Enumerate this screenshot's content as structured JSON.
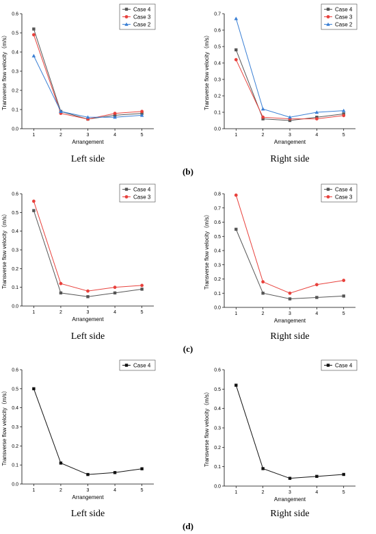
{
  "colors": {
    "Case 4": "#555555",
    "Case 3": "#e8413c",
    "Case 2": "#3a7fd4",
    "case4_black": "#111111"
  },
  "panel_labels": [
    "(b)",
    "(c)",
    "(d)"
  ],
  "chart_data": [
    {
      "type": "line",
      "caption": "Left side",
      "xlabel": "Arrangement",
      "ylabel": "Transverse flow velocity（m/s）",
      "x": [
        1,
        2,
        3,
        4,
        5
      ],
      "ylim": [
        0,
        0.6
      ],
      "yticks": [
        "0.0",
        "0.1",
        "0.2",
        "0.3",
        "0.4",
        "0.5",
        "0.6"
      ],
      "legend": "top-right",
      "series": [
        {
          "name": "Case 4",
          "marker": "square",
          "values": [
            0.52,
            0.09,
            0.05,
            0.07,
            0.08
          ]
        },
        {
          "name": "Case 3",
          "marker": "circle",
          "values": [
            0.49,
            0.08,
            0.05,
            0.08,
            0.09
          ]
        },
        {
          "name": "Case 2",
          "marker": "triangle",
          "values": [
            0.38,
            0.09,
            0.06,
            0.06,
            0.07
          ]
        }
      ]
    },
    {
      "type": "line",
      "caption": "Right side",
      "xlabel": "Arrangement",
      "ylabel": "Transverse flow velocity（m/s）",
      "x": [
        1,
        2,
        3,
        4,
        5
      ],
      "ylim": [
        0,
        0.7
      ],
      "yticks": [
        "0.0",
        "0.1",
        "0.2",
        "0.3",
        "0.4",
        "0.5",
        "0.6",
        "0.7"
      ],
      "legend": "top-right",
      "series": [
        {
          "name": "Case 4",
          "marker": "square",
          "values": [
            0.48,
            0.06,
            0.05,
            0.07,
            0.09
          ]
        },
        {
          "name": "Case 3",
          "marker": "circle",
          "values": [
            0.42,
            0.07,
            0.06,
            0.06,
            0.08
          ]
        },
        {
          "name": "Case 2",
          "marker": "triangle",
          "values": [
            0.67,
            0.12,
            0.07,
            0.1,
            0.11
          ]
        }
      ]
    },
    {
      "type": "line",
      "caption": "Left side",
      "xlabel": "Arrangement",
      "ylabel": "Transverse flow velocity（m/s）",
      "x": [
        1,
        2,
        3,
        4,
        5
      ],
      "ylim": [
        0,
        0.6
      ],
      "yticks": [
        "0.0",
        "0.1",
        "0.2",
        "0.3",
        "0.4",
        "0.5",
        "0.6"
      ],
      "legend": "top-right",
      "series": [
        {
          "name": "Case 4",
          "marker": "square",
          "values": [
            0.51,
            0.07,
            0.05,
            0.07,
            0.09
          ]
        },
        {
          "name": "Case 3",
          "marker": "circle",
          "values": [
            0.56,
            0.12,
            0.08,
            0.1,
            0.11
          ]
        }
      ]
    },
    {
      "type": "line",
      "caption": "Right side",
      "xlabel": "Arrangement",
      "ylabel": "Transverse flow velocity（m/s）",
      "x": [
        1,
        2,
        3,
        4,
        5
      ],
      "ylim": [
        0,
        0.8
      ],
      "yticks": [
        "0.0",
        "0.1",
        "0.2",
        "0.3",
        "0.4",
        "0.5",
        "0.6",
        "0.7",
        "0.8"
      ],
      "legend": "top-right",
      "series": [
        {
          "name": "Case 4",
          "marker": "square",
          "values": [
            0.55,
            0.1,
            0.06,
            0.07,
            0.08
          ]
        },
        {
          "name": "Case 3",
          "marker": "circle",
          "values": [
            0.79,
            0.18,
            0.1,
            0.16,
            0.19
          ]
        }
      ]
    },
    {
      "type": "line",
      "caption": "Left side",
      "xlabel": "Arrangement",
      "ylabel": "Transverse flow velocity（m/s）",
      "x": [
        1,
        2,
        3,
        4,
        5
      ],
      "ylim": [
        0,
        0.6
      ],
      "yticks": [
        "0.0",
        "0.1",
        "0.2",
        "0.3",
        "0.4",
        "0.5",
        "0.6"
      ],
      "legend": "top-right",
      "series": [
        {
          "name": "Case 4",
          "marker": "square",
          "color": "#111111",
          "values": [
            0.5,
            0.11,
            0.05,
            0.06,
            0.08
          ]
        }
      ]
    },
    {
      "type": "line",
      "caption": "Right side",
      "xlabel": "Arrangement",
      "ylabel": "Transverse flow velocity（m/s）",
      "x": [
        1,
        2,
        3,
        4,
        5
      ],
      "ylim": [
        0,
        0.6
      ],
      "yticks": [
        "0.0",
        "0.1",
        "0.2",
        "0.3",
        "0.4",
        "0.5",
        "0.6"
      ],
      "legend": "top-right",
      "series": [
        {
          "name": "Case 4",
          "marker": "square",
          "color": "#111111",
          "values": [
            0.52,
            0.09,
            0.04,
            0.05,
            0.06
          ]
        }
      ]
    }
  ]
}
